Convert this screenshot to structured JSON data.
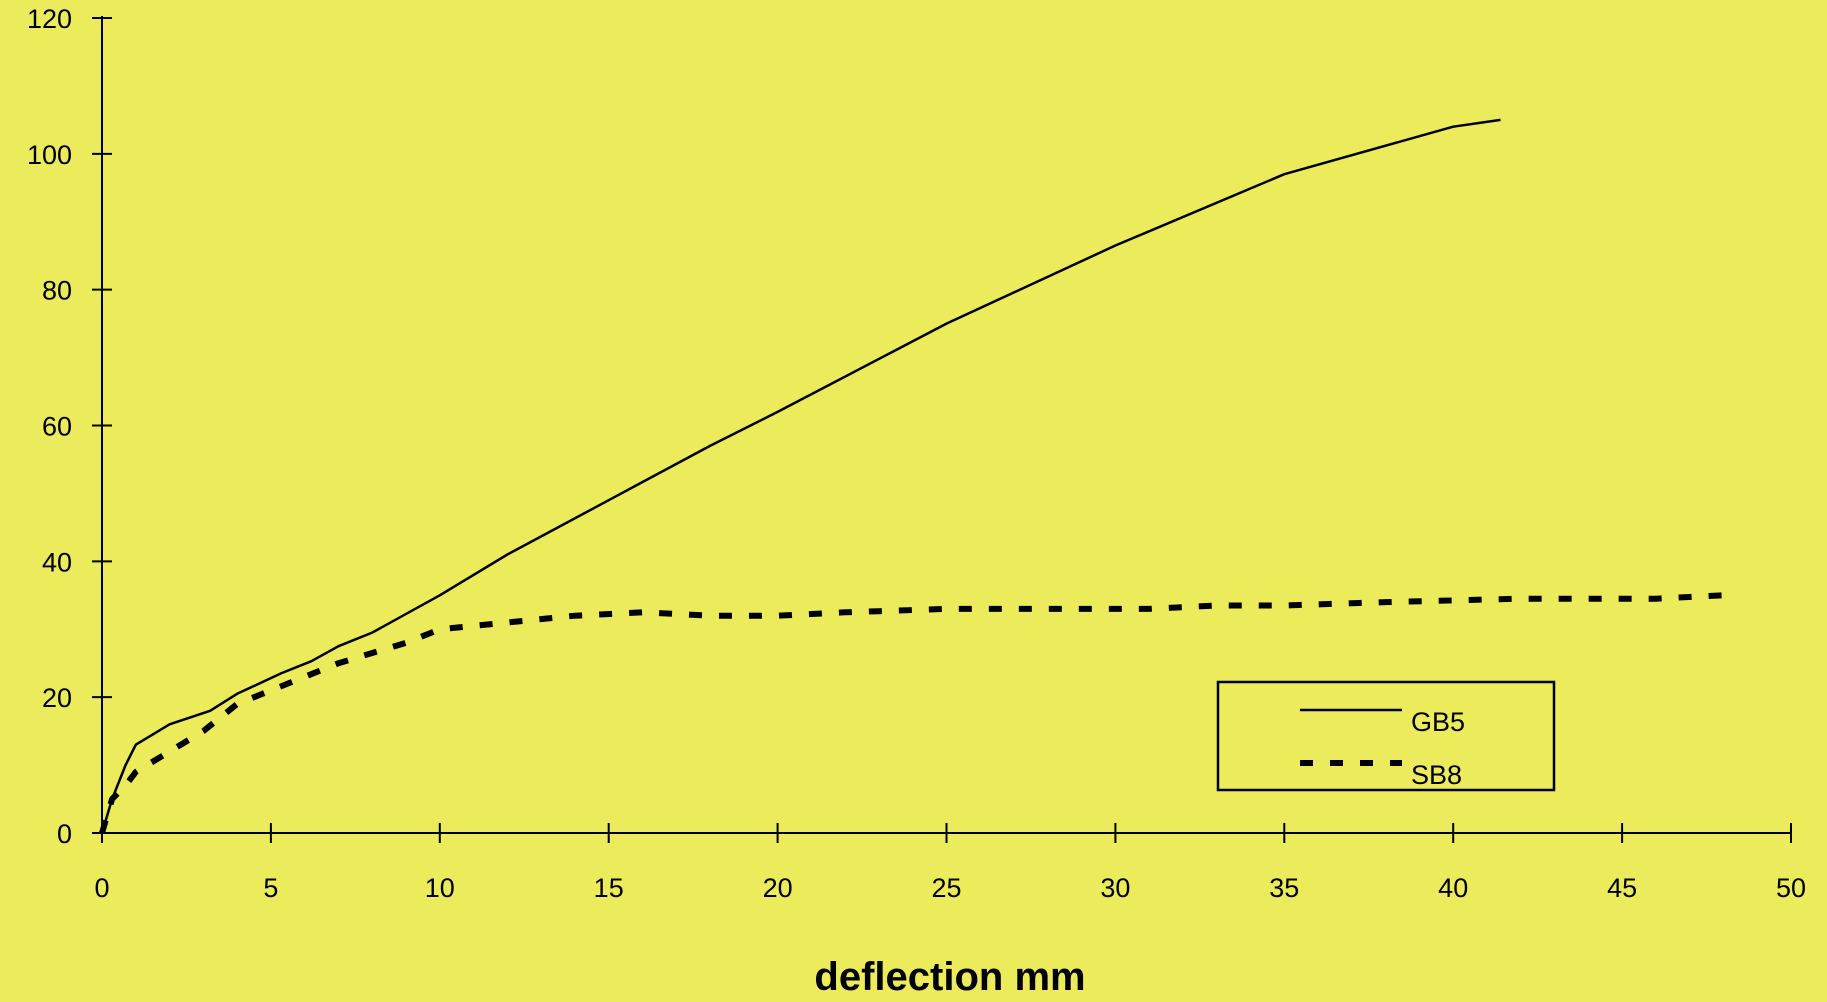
{
  "colors": {
    "background": "#ebeb5c",
    "ink": "#000000"
  },
  "chart_data": {
    "type": "line",
    "title": "",
    "xlabel": "deflection mm",
    "ylabel": "",
    "xlim": [
      0,
      50
    ],
    "ylim": [
      0,
      120
    ],
    "x_ticks": [
      "0",
      "5",
      "10",
      "15",
      "20",
      "25",
      "30",
      "35",
      "40",
      "45",
      "50"
    ],
    "y_ticks": [
      "0",
      "20",
      "40",
      "60",
      "80",
      "100",
      "120"
    ],
    "grid": false,
    "legend_position": "lower-right",
    "series": [
      {
        "name": "GB5",
        "style": "solid",
        "x": [
          0,
          0.3,
          0.7,
          1.0,
          2.0,
          3.2,
          4.0,
          5.3,
          6.2,
          7.0,
          8.0,
          10.0,
          12.0,
          15.0,
          18.0,
          20.0,
          25.0,
          30.0,
          35.0,
          40.0,
          41.4
        ],
        "y": [
          0,
          5,
          10,
          13,
          16,
          18,
          20.5,
          23.5,
          25.3,
          27.5,
          29.5,
          35,
          41,
          49,
          57,
          62,
          75,
          86.5,
          97,
          104,
          105
        ]
      },
      {
        "name": "SB8",
        "style": "dashed",
        "x": [
          0,
          0.3,
          0.7,
          1.0,
          2.0,
          3.0,
          4.0,
          5.0,
          6.0,
          7.0,
          8.0,
          9.0,
          10.0,
          12.0,
          14.0,
          16.0,
          18.0,
          20.0,
          22.0,
          25.0,
          28.0,
          31.0,
          33.0,
          35.0,
          38.0,
          42.0,
          46.0,
          48.0
        ],
        "y": [
          0,
          5,
          7,
          9,
          12,
          15,
          19,
          21,
          23,
          25,
          26.5,
          28,
          30,
          31,
          32,
          32.5,
          32,
          32,
          32.5,
          33,
          33,
          33,
          33.5,
          33.5,
          34,
          34.5,
          34.5,
          35
        ]
      }
    ]
  }
}
